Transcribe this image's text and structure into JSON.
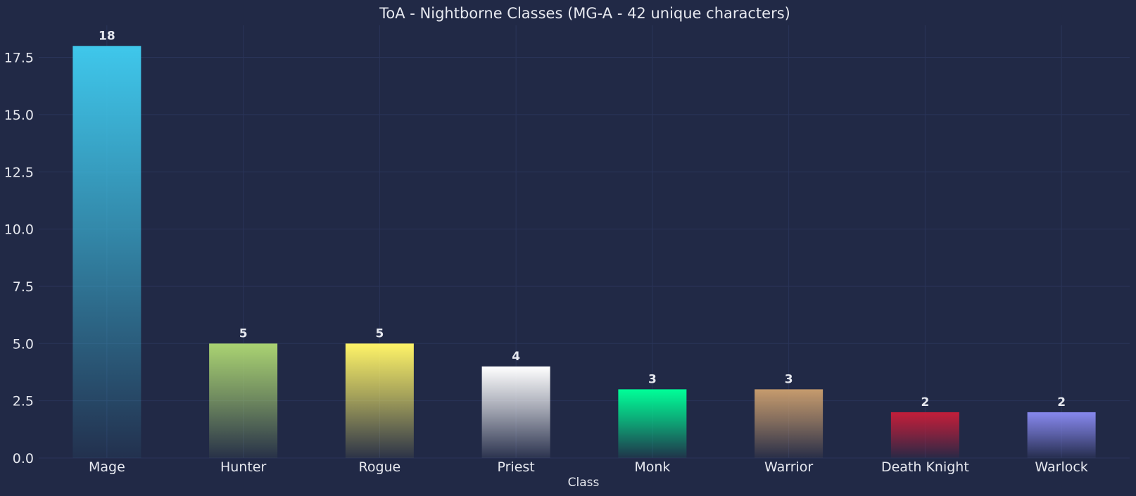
{
  "chart_data": {
    "type": "bar",
    "title": "ToA - Nightborne Classes (MG-A - 42 unique characters)",
    "xlabel": "Class",
    "ylabel": "",
    "categories": [
      "Mage",
      "Hunter",
      "Rogue",
      "Priest",
      "Monk",
      "Warrior",
      "Death Knight",
      "Warlock"
    ],
    "values": [
      18,
      5,
      5,
      4,
      3,
      3,
      2,
      2
    ],
    "value_labels": [
      "18",
      "5",
      "5",
      "4",
      "3",
      "3",
      "2",
      "2"
    ],
    "colors": [
      "#3FC7EB",
      "#AAD372",
      "#FFF468",
      "#FFFFFF",
      "#00FF98",
      "#C69B6D",
      "#C41E3A",
      "#8788EE"
    ],
    "ylim": [
      0,
      18.9
    ],
    "yticks": [
      0,
      2.5,
      5,
      7.5,
      10,
      12.5,
      15,
      17.5
    ],
    "ytick_labels": [
      "0.0",
      "2.5",
      "5.0",
      "7.5",
      "10.0",
      "12.5",
      "15.0",
      "17.5"
    ],
    "grid": true,
    "background": "#212946",
    "grid_color": "#2A3459"
  }
}
